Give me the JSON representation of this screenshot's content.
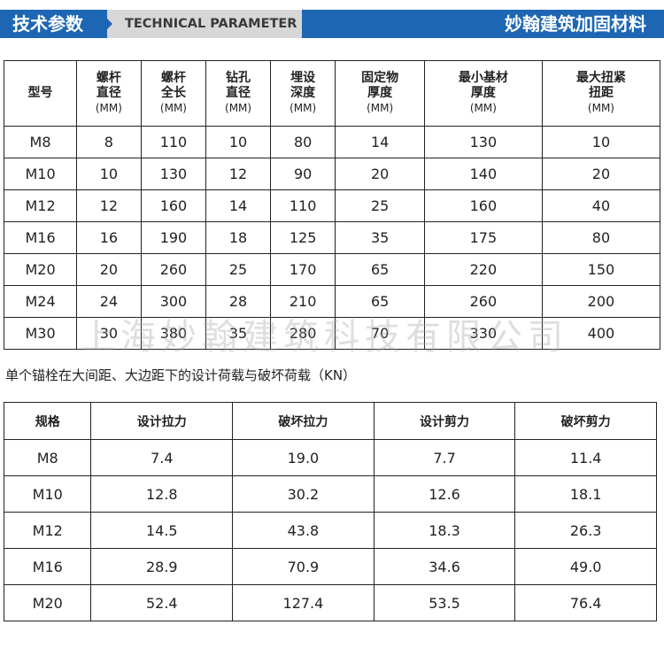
{
  "banner": {
    "left_title": "技术参数",
    "mid_title": "TECHNICAL PARAMETER",
    "right_title": "妙翰建筑加固材料",
    "colors": {
      "blue": "#1d66b4",
      "gray": "#d7d7d7"
    }
  },
  "table1": {
    "headers": [
      {
        "line1": "型号",
        "line2": "",
        "unit": ""
      },
      {
        "line1": "螺杆",
        "line2": "直径",
        "unit": "(MM)"
      },
      {
        "line1": "螺杆",
        "line2": "全长",
        "unit": "(MM)"
      },
      {
        "line1": "钻孔",
        "line2": "直径",
        "unit": "(MM)"
      },
      {
        "line1": "埋设",
        "line2": "深度",
        "unit": "(MM)"
      },
      {
        "line1": "固定物",
        "line2": "厚度",
        "unit": "(MM)"
      },
      {
        "line1": "最小基材",
        "line2": "厚度",
        "unit": "(MM)"
      },
      {
        "line1": "最大扭紧",
        "line2": "扭距",
        "unit": "(MM)"
      }
    ],
    "rows": [
      [
        "M8",
        "8",
        "110",
        "10",
        "80",
        "14",
        "130",
        "10"
      ],
      [
        "M10",
        "10",
        "130",
        "12",
        "90",
        "20",
        "140",
        "20"
      ],
      [
        "M12",
        "12",
        "160",
        "14",
        "110",
        "25",
        "160",
        "40"
      ],
      [
        "M16",
        "16",
        "190",
        "18",
        "125",
        "35",
        "175",
        "80"
      ],
      [
        "M20",
        "20",
        "260",
        "25",
        "170",
        "65",
        "220",
        "150"
      ],
      [
        "M24",
        "24",
        "300",
        "28",
        "210",
        "65",
        "260",
        "200"
      ],
      [
        "M30",
        "30",
        "380",
        "35",
        "280",
        "70",
        "330",
        "400"
      ]
    ]
  },
  "watermark": "上海妙翰建筑科技有限公司",
  "caption": "单个锚栓在大间距、大边距下的设计荷载与破坏荷载（KN）",
  "table2": {
    "headers": [
      "规格",
      "设计拉力",
      "破坏拉力",
      "设计剪力",
      "破坏剪力"
    ],
    "rows": [
      [
        "M8",
        "7.4",
        "19.0",
        "7.7",
        "11.4"
      ],
      [
        "M10",
        "12.8",
        "30.2",
        "12.6",
        "18.1"
      ],
      [
        "M12",
        "14.5",
        "43.8",
        "18.3",
        "26.3"
      ],
      [
        "M16",
        "28.9",
        "70.9",
        "34.6",
        "49.0"
      ],
      [
        "M20",
        "52.4",
        "127.4",
        "53.5",
        "76.4"
      ]
    ]
  }
}
